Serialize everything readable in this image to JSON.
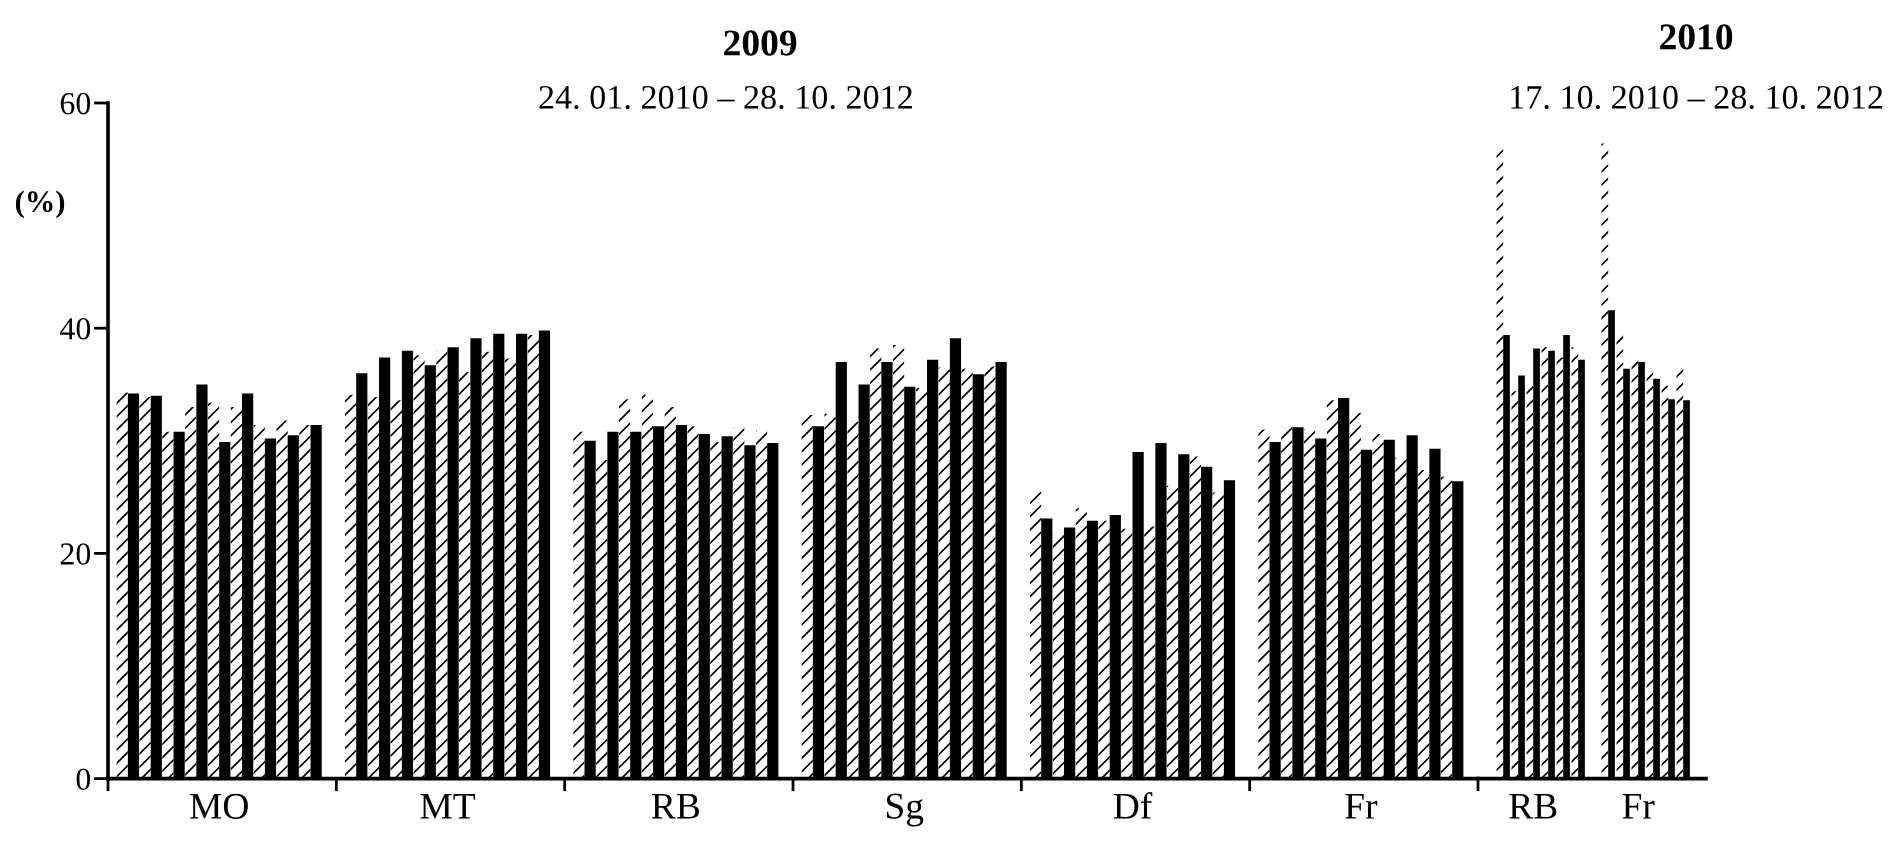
{
  "chart_data": [
    {
      "type": "bar",
      "title": "2009",
      "subtitle": "24. 01. 2010 – 28. 10. 2012",
      "ylabel": "(%)",
      "ylim": [
        0,
        60
      ],
      "yticks": [
        0,
        20,
        40,
        60
      ],
      "categories": [
        null,
        null,
        null,
        null,
        "MO",
        null,
        null,
        null,
        null,
        null,
        null,
        null,
        null,
        null,
        "MT",
        null,
        null,
        null,
        null,
        null,
        null,
        null,
        null,
        null,
        "RB",
        null,
        null,
        null,
        null,
        null,
        null,
        null,
        null,
        null,
        "Sg",
        null,
        null,
        null,
        null,
        null,
        null,
        null,
        null,
        null,
        "Df",
        null,
        null,
        null,
        null,
        null,
        null,
        null,
        null,
        null,
        "Fr",
        null,
        null,
        null,
        null,
        null
      ],
      "series": [
        {
          "color": "#ffffff",
          "values": [
            34.3,
            33.9,
            30.8,
            33.0,
            33.4,
            33.0,
            31.4,
            31.8,
            31.4,
            null,
            34.1,
            33.9,
            33.6,
            37.6,
            38.0,
            36.1,
            37.9,
            37.3,
            39.4,
            null,
            30.8,
            28.3,
            33.7,
            34.1,
            33.0,
            31.3,
            29.9,
            31.2,
            30.9,
            null,
            32.3,
            32.4,
            31.7,
            38.2,
            38.5,
            34.7,
            36.5,
            36.4,
            36.6,
            null,
            25.5,
            21.7,
            24.0,
            22.9,
            22.2,
            22.4,
            26.0,
            28.6,
            25.4,
            null,
            31.0,
            31.3,
            31.0,
            33.6,
            32.5,
            30.6,
            28.5,
            27.4,
            26.8,
            null
          ]
        },
        {
          "color": "#000000",
          "values": [
            34.2,
            34.0,
            30.8,
            35.0,
            29.9,
            34.2,
            30.2,
            30.5,
            31.4,
            null,
            36.0,
            37.4,
            38.0,
            36.7,
            38.3,
            39.1,
            39.5,
            39.5,
            39.8,
            null,
            30.0,
            30.8,
            30.8,
            31.3,
            31.4,
            30.6,
            30.4,
            29.6,
            29.8,
            null,
            31.3,
            37.0,
            35.0,
            37.0,
            34.8,
            37.2,
            39.1,
            35.9,
            37.0,
            null,
            23.1,
            22.3,
            22.9,
            23.4,
            29.0,
            29.8,
            28.8,
            27.7,
            26.5,
            null,
            29.9,
            31.2,
            30.2,
            33.8,
            29.2,
            30.1,
            30.5,
            29.3,
            26.4,
            null
          ]
        }
      ]
    },
    {
      "type": "bar",
      "title": "2010",
      "subtitle": "17. 10. 2010 – 28. 10. 2012",
      "ylim": [
        0,
        60
      ],
      "tick_labels": "x",
      "categories": [
        null,
        null,
        "RB",
        null,
        null,
        null,
        null,
        null,
        null,
        "Fr",
        null,
        null,
        null
      ],
      "series": [
        {
          "color": "#ffffff",
          "values": [
            56.2,
            34.4,
            34.9,
            38.3,
            37.4,
            38.3,
            null,
            56.4,
            39.6,
            37.5,
            36.4,
            34.9,
            36.7
          ]
        },
        {
          "color": "#000000",
          "values": [
            39.4,
            35.8,
            38.2,
            38.0,
            39.4,
            37.2,
            null,
            41.6,
            36.4,
            37.0,
            35.5,
            33.7,
            33.6
          ]
        }
      ]
    }
  ]
}
